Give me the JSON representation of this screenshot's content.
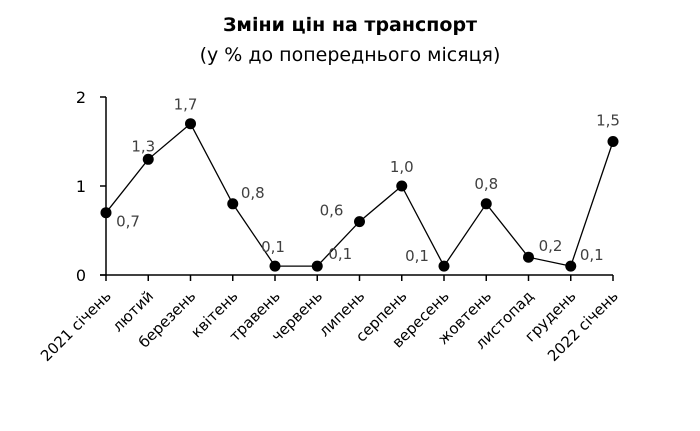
{
  "chart_data": {
    "type": "line",
    "title": "Зміни цін на транспорт",
    "subtitle": "(у % до попереднього місяця)",
    "xlabel": "",
    "ylabel": "",
    "ylim": [
      0,
      2
    ],
    "yticks": [
      "0",
      "1",
      "2"
    ],
    "grid": false,
    "legend": null,
    "categories": [
      "2021 січень",
      "лютий",
      "березень",
      "квітень",
      "травень",
      "червень",
      "липень",
      "серпень",
      "вересень",
      "жовтень",
      "листопад",
      "грудень",
      "2022 січень"
    ],
    "series": [
      {
        "name": "Зміни цін на транспорт",
        "values": [
          0.7,
          1.3,
          1.7,
          0.8,
          0.1,
          0.1,
          0.6,
          1.0,
          0.1,
          0.8,
          0.2,
          0.1,
          1.5
        ],
        "labels": [
          "0,7",
          "1,3",
          "1,7",
          "0,8",
          "0,1",
          "0,1",
          "0,6",
          "1,0",
          "0,1",
          "0,8",
          "0,2",
          "0,1",
          "1,5"
        ]
      }
    ]
  }
}
